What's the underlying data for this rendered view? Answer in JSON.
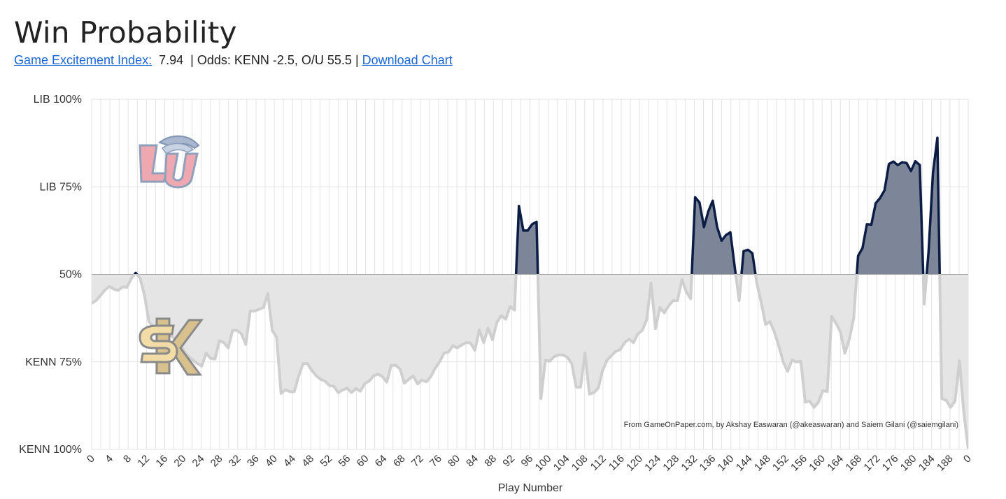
{
  "page": {
    "title": "Win Probability",
    "gei_link_label": "Game Excitement Index:",
    "gei_value": "7.94",
    "odds_text": "| Odds: KENN -2.5, O/U 55.5 |",
    "download_label": "Download Chart"
  },
  "chart_data": {
    "type": "area",
    "title": "",
    "xlabel": "Play Number",
    "ylabel": "",
    "x_ticks": [
      "0",
      "4",
      "8",
      "12",
      "16",
      "20",
      "24",
      "28",
      "32",
      "36",
      "40",
      "44",
      "48",
      "52",
      "56",
      "60",
      "64",
      "68",
      "72",
      "76",
      "80",
      "84",
      "88",
      "92",
      "96",
      "100",
      "104",
      "108",
      "112",
      "116",
      "120",
      "124",
      "128",
      "132",
      "136",
      "140",
      "144",
      "148",
      "152",
      "156",
      "160",
      "164",
      "168",
      "172",
      "176",
      "180",
      "184",
      "188",
      "0"
    ],
    "y_ticks": [
      "KENN 100%",
      "KENN 75%",
      "50%",
      "LIB 75%",
      "LIB 100%"
    ],
    "ylim": [
      0,
      100
    ],
    "xlim": [
      0,
      192
    ],
    "baseline": 50,
    "home_team": "KENN",
    "away_team": "LIB",
    "attribution": "From GameOnPaper.com, by Akshay Easwaran (@akeaswaran) and Saiem Gilani (@saiemgilani)",
    "grid": true,
    "series": [
      {
        "values": [
          41.7,
          42.5,
          44,
          45.5,
          46.5,
          45.8,
          45.4,
          46.4,
          46.3,
          48.8,
          50.4,
          48.9,
          44,
          36.5,
          35,
          35.5,
          34,
          33.5,
          32.5,
          31.5,
          30.5,
          28,
          26.5,
          25.5,
          24.5,
          23.8,
          27.5,
          26,
          25.8,
          31,
          30.5,
          29,
          34,
          34,
          33,
          30,
          39.5,
          39.5,
          40,
          40.5,
          44.5,
          34,
          32,
          16,
          17,
          16.5,
          16.5,
          21,
          24.5,
          24.5,
          22.5,
          21,
          20,
          19.5,
          18.2,
          18,
          16.2,
          17,
          17.5,
          16.2,
          17.4,
          16.6,
          18.8,
          19.5,
          21,
          21.5,
          20.8,
          19.2,
          24,
          24,
          23,
          18.9,
          20,
          21,
          18.7,
          19.8,
          19.3,
          20.8,
          23.2,
          25,
          27.5,
          27.8,
          29.6,
          29,
          29.8,
          30.5,
          30.4,
          28.3,
          34.1,
          30.5,
          34.6,
          31.3,
          36.3,
          38.2,
          37.2,
          40.8,
          39.8,
          69.5,
          62.5,
          62.5,
          64.3,
          65,
          14.5,
          25.5,
          25.2,
          26.5,
          27,
          27,
          26.3,
          24.5,
          17.8,
          17.8,
          27.5,
          15.8,
          16.2,
          17.5,
          22.5,
          25.5,
          26.8,
          28,
          28.5,
          30.5,
          31.5,
          30.5,
          33,
          34,
          37,
          47.5,
          34.5,
          40.5,
          39,
          41,
          42.5,
          42.5,
          48.5,
          45,
          43,
          72,
          70.5,
          63.5,
          68,
          71,
          63.5,
          59.6,
          61.2,
          62,
          52,
          42.5,
          56.6,
          57,
          56,
          47.5,
          42,
          35.7,
          36.5,
          33.5,
          29.5,
          25,
          22.3,
          25.5,
          25,
          25.2,
          13.5,
          13.8,
          12,
          13.5,
          16.8,
          16.5,
          38,
          36,
          33.5,
          27.5,
          31.5,
          37.5,
          55.3,
          57.5,
          64.3,
          64.2,
          70.3,
          71.8,
          74,
          81.5,
          82.2,
          81.2,
          82,
          81.8,
          79.5,
          82.3,
          81.2,
          41.5,
          56.5,
          79,
          89,
          14.5,
          14,
          12,
          13.8,
          25.3,
          10.5,
          0.2
        ]
      }
    ]
  }
}
